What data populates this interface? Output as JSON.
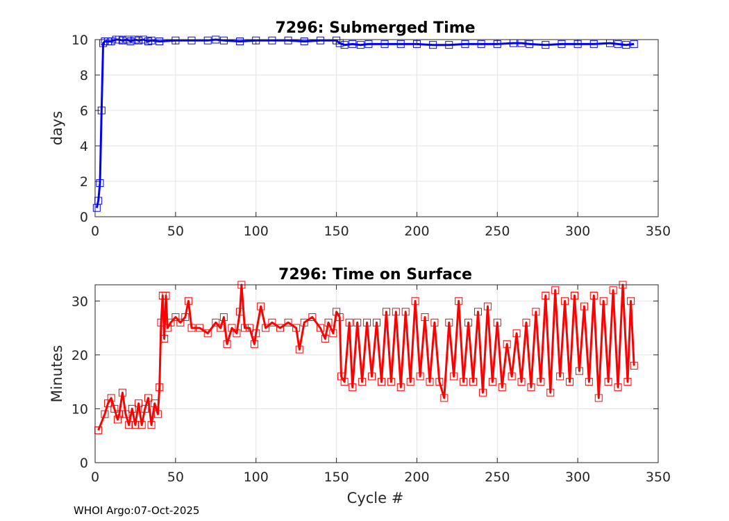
{
  "footer": "WHOI Argo:07-Oct-2025",
  "chart_data": [
    {
      "type": "line",
      "title": "7296: Submerged Time",
      "xlabel": "",
      "ylabel": "days",
      "xlim": [
        0,
        350
      ],
      "ylim": [
        0,
        10
      ],
      "xticks": [
        0,
        50,
        100,
        150,
        200,
        250,
        300,
        350
      ],
      "yticks": [
        0,
        2,
        4,
        6,
        8,
        10
      ],
      "grid": true,
      "color": "#0000ff",
      "marker": "square",
      "series": [
        {
          "name": "Submerged Time",
          "x": [
            1,
            2,
            3,
            4,
            5,
            6,
            8,
            10,
            13,
            15,
            17,
            20,
            22,
            25,
            27,
            30,
            33,
            35,
            40,
            50,
            60,
            70,
            75,
            80,
            90,
            100,
            110,
            120,
            130,
            140,
            150,
            152,
            155,
            160,
            165,
            170,
            180,
            190,
            200,
            210,
            220,
            230,
            240,
            250,
            260,
            265,
            270,
            280,
            290,
            300,
            310,
            320,
            325,
            330,
            335
          ],
          "y": [
            0.5,
            0.9,
            1.9,
            6.0,
            9.8,
            9.9,
            9.9,
            9.9,
            10.0,
            10.0,
            9.95,
            10.0,
            9.9,
            10.0,
            9.95,
            10.0,
            9.9,
            9.95,
            9.9,
            9.95,
            9.95,
            9.95,
            10.0,
            9.95,
            9.9,
            9.95,
            9.95,
            9.95,
            9.9,
            9.95,
            9.95,
            9.8,
            9.7,
            9.75,
            9.7,
            9.75,
            9.75,
            9.75,
            9.75,
            9.7,
            9.7,
            9.75,
            9.75,
            9.75,
            9.8,
            9.8,
            9.75,
            9.7,
            9.75,
            9.75,
            9.75,
            9.8,
            9.75,
            9.7,
            9.75
          ]
        }
      ]
    },
    {
      "type": "line",
      "title": "7296: Time on Surface",
      "xlabel": "Cycle #",
      "ylabel": "Minutes",
      "xlim": [
        0,
        350
      ],
      "ylim": [
        0,
        33
      ],
      "xticks": [
        0,
        50,
        100,
        150,
        200,
        250,
        300,
        350
      ],
      "yticks": [
        0,
        10,
        20,
        30
      ],
      "grid": true,
      "color": "#ff0000",
      "marker": "square",
      "series": [
        {
          "name": "Time on Surface",
          "x": [
            2,
            6,
            8,
            10,
            12,
            14,
            15,
            17,
            19,
            21,
            23,
            25,
            27,
            29,
            31,
            33,
            35,
            37,
            39,
            40,
            41,
            42,
            43,
            44,
            45,
            47,
            50,
            53,
            56,
            58,
            60,
            65,
            70,
            75,
            78,
            80,
            82,
            85,
            88,
            90,
            91,
            93,
            96,
            99,
            100,
            103,
            106,
            110,
            115,
            120,
            125,
            127,
            130,
            135,
            140,
            143,
            145,
            148,
            150,
            152,
            153,
            155,
            158,
            160,
            163,
            166,
            169,
            172,
            175,
            178,
            181,
            184,
            187,
            190,
            193,
            196,
            199,
            202,
            205,
            208,
            211,
            214,
            217,
            220,
            223,
            226,
            229,
            232,
            235,
            238,
            241,
            244,
            247,
            250,
            253,
            256,
            259,
            262,
            265,
            268,
            271,
            274,
            277,
            280,
            283,
            286,
            289,
            292,
            295,
            298,
            301,
            304,
            307,
            310,
            313,
            316,
            319,
            322,
            325,
            328,
            331,
            333,
            335
          ],
          "y": [
            6,
            9,
            11,
            12,
            10,
            8,
            9,
            13,
            9,
            7,
            10,
            7,
            11,
            7,
            10,
            12,
            7,
            11,
            9,
            14,
            26,
            31,
            23,
            31,
            25,
            26,
            27,
            26,
            27,
            30,
            25,
            25,
            24,
            26,
            25,
            27,
            22,
            25,
            24,
            28,
            33,
            25,
            25,
            22,
            24,
            29,
            25,
            26,
            25,
            26,
            25,
            21,
            26,
            27,
            25,
            23,
            26,
            24,
            28,
            27,
            16,
            15,
            26,
            14,
            26,
            15,
            26,
            16,
            26,
            15,
            28,
            15,
            28,
            14,
            28,
            15,
            30,
            16,
            27,
            15,
            26,
            15,
            12,
            26,
            16,
            30,
            15,
            26,
            15,
            28,
            13,
            29,
            15,
            26,
            14,
            22,
            16,
            24,
            15,
            26,
            14,
            28,
            15,
            31,
            13,
            32,
            16,
            30,
            15,
            31,
            17,
            29,
            15,
            31,
            12,
            30,
            15,
            32,
            14,
            33,
            15,
            30,
            18
          ]
        }
      ]
    }
  ]
}
